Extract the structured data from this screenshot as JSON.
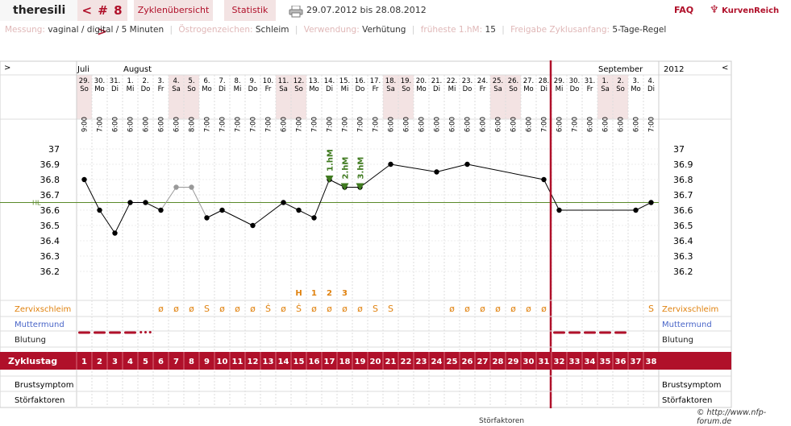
{
  "header": {
    "username": "theresili",
    "cycle_label": "< # 8 >",
    "nav_overview": "Zyklenübersicht",
    "nav_stats": "Statistik",
    "date_range": "29.07.2012 bis 28.08.2012",
    "faq": "FAQ",
    "logo": "KurvenReich"
  },
  "info": {
    "measurement_label": "Messung:",
    "measurement_value": "vaginal / digital / 5 Minuten",
    "estrogen_label": "Östrogenzeichen:",
    "estrogen_value": "Schleim",
    "usage_label": "Verwendung:",
    "usage_value": "Verhütung",
    "earliest_label": "früheste 1.hM:",
    "earliest_value": "15",
    "release_label": "Freigabe Zyklusanfang:",
    "release_value": "5-Tage-Regel"
  },
  "chart": {
    "left_arrow": ">",
    "right_arrow": "<",
    "year": "2012",
    "months": [
      {
        "label": "Juli",
        "day": 0
      },
      {
        "label": "August",
        "day": 3
      },
      {
        "label": "September",
        "day": 34
      }
    ],
    "days": [
      {
        "d": "29.",
        "w": "So",
        "t": "9:00",
        "we": true
      },
      {
        "d": "30.",
        "w": "Mo",
        "t": "7:00",
        "we": false
      },
      {
        "d": "31.",
        "w": "Di",
        "t": "6:00",
        "we": false
      },
      {
        "d": "1.",
        "w": "Mi",
        "t": "6:00",
        "we": false
      },
      {
        "d": "2.",
        "w": "Do",
        "t": "6:00",
        "we": false
      },
      {
        "d": "3.",
        "w": "Fr",
        "t": "6:00",
        "we": false
      },
      {
        "d": "4.",
        "w": "Sa",
        "t": "6:00",
        "we": true
      },
      {
        "d": "5.",
        "w": "So",
        "t": "8:00",
        "we": true
      },
      {
        "d": "6.",
        "w": "Mo",
        "t": "7:00",
        "we": false
      },
      {
        "d": "7.",
        "w": "Di",
        "t": "7:00",
        "we": false
      },
      {
        "d": "8.",
        "w": "Mi",
        "t": "7:00",
        "we": false
      },
      {
        "d": "9.",
        "w": "Do",
        "t": "7:00",
        "we": false
      },
      {
        "d": "10.",
        "w": "Fr",
        "t": "7:00",
        "we": false
      },
      {
        "d": "11.",
        "w": "Sa",
        "t": "6:00",
        "we": true
      },
      {
        "d": "12.",
        "w": "So",
        "t": "7:00",
        "we": true
      },
      {
        "d": "13.",
        "w": "Mo",
        "t": "7:00",
        "we": false
      },
      {
        "d": "14.",
        "w": "Di",
        "t": "7:00",
        "we": false
      },
      {
        "d": "15.",
        "w": "Mi",
        "t": "7:00",
        "we": false
      },
      {
        "d": "16.",
        "w": "Do",
        "t": "7:00",
        "we": false
      },
      {
        "d": "17.",
        "w": "Fr",
        "t": "7:00",
        "we": false
      },
      {
        "d": "18.",
        "w": "Sa",
        "t": "6:00",
        "we": true
      },
      {
        "d": "19.",
        "w": "So",
        "t": "6:00",
        "we": true
      },
      {
        "d": "20.",
        "w": "Mo",
        "t": "6:00",
        "we": false
      },
      {
        "d": "21.",
        "w": "Di",
        "t": "6:00",
        "we": false
      },
      {
        "d": "22.",
        "w": "Mi",
        "t": "6:00",
        "we": false
      },
      {
        "d": "23.",
        "w": "Do",
        "t": "6:00",
        "we": false
      },
      {
        "d": "24.",
        "w": "Fr",
        "t": "6:00",
        "we": false
      },
      {
        "d": "25.",
        "w": "Sa",
        "t": "6:00",
        "we": true
      },
      {
        "d": "26.",
        "w": "So",
        "t": "6:00",
        "we": true
      },
      {
        "d": "27.",
        "w": "Mo",
        "t": "6:00",
        "we": false
      },
      {
        "d": "28.",
        "w": "Di",
        "t": "7:00",
        "we": false
      },
      {
        "d": "29.",
        "w": "Mi",
        "t": "6:00",
        "we": false
      },
      {
        "d": "30.",
        "w": "Do",
        "t": "7:00",
        "we": false
      },
      {
        "d": "31.",
        "w": "Fr",
        "t": "6:00",
        "we": false
      },
      {
        "d": "1.",
        "w": "Sa",
        "t": "6:00",
        "we": true
      },
      {
        "d": "2.",
        "w": "So",
        "t": "6:00",
        "we": true
      },
      {
        "d": "3.",
        "w": "Mo",
        "t": "6:00",
        "we": false
      },
      {
        "d": "4.",
        "w": "Di",
        "t": "7:00",
        "we": false
      }
    ],
    "temp_ticks": [
      "37",
      "36.9",
      "36.8",
      "36.7",
      "36.6",
      "36.5",
      "36.4",
      "36.3",
      "36.2"
    ],
    "hl_label": "HL",
    "hl_value": 36.65,
    "temps": [
      36.8,
      36.6,
      36.45,
      36.65,
      36.65,
      36.6,
      36.75,
      36.75,
      36.55,
      36.6,
      null,
      36.5,
      null,
      36.65,
      36.6,
      36.55,
      36.8,
      36.75,
      36.75,
      null,
      36.9,
      null,
      null,
      36.85,
      null,
      36.9,
      null,
      null,
      null,
      null,
      36.8,
      36.6,
      null,
      null,
      null,
      null,
      36.6,
      36.65
    ],
    "excluded_days": [
      7,
      8
    ],
    "hm_labels": [
      {
        "day": 17,
        "text": "1.hM"
      },
      {
        "day": 18,
        "text": "2.hM"
      },
      {
        "day": 19,
        "text": "3.hM"
      }
    ],
    "peak_markers": [
      {
        "day": 15,
        "text": "H"
      },
      {
        "day": 16,
        "text": "1"
      },
      {
        "day": 17,
        "text": "2"
      },
      {
        "day": 18,
        "text": "3"
      }
    ],
    "rows": {
      "mucus": "Zervixschleim",
      "cervix": "Muttermund",
      "bleeding": "Blutung",
      "cycle_day": "Zyklustag",
      "breast": "Brustsymptom",
      "disturb": "Störfaktoren"
    },
    "mucus_values": [
      "",
      "",
      "",
      "",
      "",
      "ø",
      "ø",
      "ø",
      "S",
      "ø",
      "ø",
      "ø",
      "Ṡ",
      "ø",
      "Ṡ",
      "ø",
      "ø",
      "ø",
      "ø",
      "S",
      "S",
      "",
      "",
      "",
      "ø",
      "ø",
      "ø",
      "ø",
      "ø",
      "ø",
      "ø",
      "",
      "",
      "",
      "",
      "",
      "",
      "S"
    ],
    "bleeding": [
      2,
      2,
      2,
      2,
      1,
      0,
      0,
      0,
      0,
      0,
      0,
      0,
      0,
      0,
      0,
      0,
      0,
      0,
      0,
      0,
      0,
      0,
      0,
      0,
      0,
      0,
      0,
      0,
      0,
      0,
      0,
      2,
      2,
      2,
      2,
      2,
      0,
      0
    ],
    "cover_line_day": 31.5,
    "colors": {
      "accent": "#b0102a",
      "curve": "#000000",
      "excluded": "#999999",
      "hl": "#5a8a2a",
      "hm": "#3f7a1f",
      "mucus": "#e0820f",
      "cervix": "#4a66c8",
      "weekend": "#f3e3e3"
    }
  },
  "footer": {
    "copyright": "© http://www.nfp-forum.de",
    "ghost": "Störfaktoren"
  }
}
